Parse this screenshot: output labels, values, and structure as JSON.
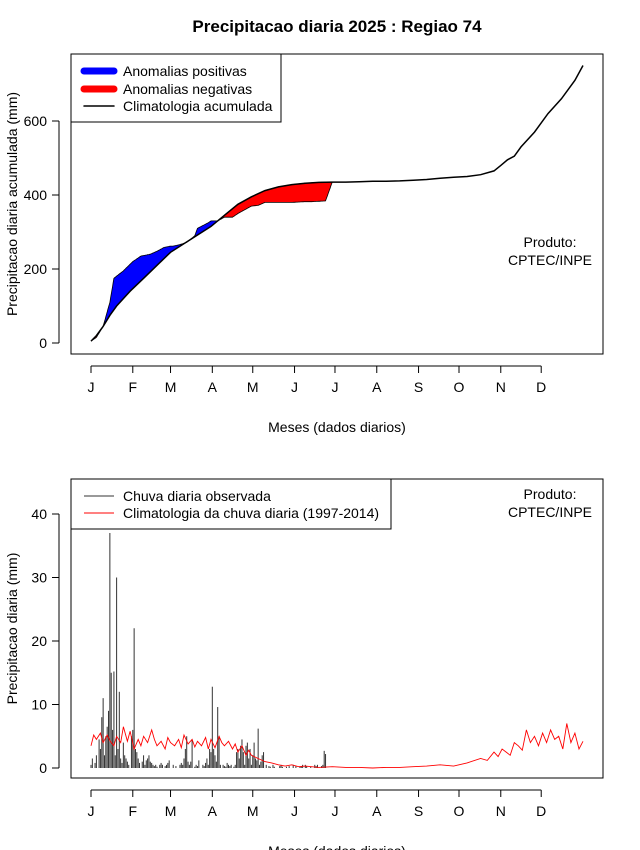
{
  "title": "Precipitacao diaria 2025 : Regiao 74",
  "months": [
    "J",
    "F",
    "M",
    "A",
    "M",
    "J",
    "J",
    "A",
    "S",
    "O",
    "N",
    "D"
  ],
  "chart_data": [
    {
      "type": "area",
      "ylabel": "Precipitacao diaria acumulada (mm)",
      "xlabel": "Meses (dados diarios)",
      "x_unit": "day_of_year",
      "ylim": [
        -30,
        760
      ],
      "yticks": [
        0,
        200,
        400,
        600
      ],
      "legend": {
        "position": "top-left",
        "entries": [
          "Anomalias positivas",
          "Anomalias negativas",
          "Climatologia acumulada"
        ],
        "colors": [
          "#0000ff",
          "#ff0000",
          "#000000"
        ]
      },
      "annotation": {
        "line1": "Produto:",
        "line2": "CPTEC/INPE",
        "position": "right"
      },
      "climatology_cumulative": {
        "name": "Climatologia acumulada",
        "x": [
          1,
          5,
          10,
          15,
          20,
          30,
          40,
          50,
          60,
          75,
          90,
          100,
          110,
          120,
          130,
          140,
          150,
          160,
          170,
          180,
          190,
          200,
          210,
          220,
          230,
          240,
          250,
          260,
          270,
          280,
          290,
          300,
          305,
          310,
          315,
          320,
          330,
          340,
          350,
          360,
          366
        ],
        "y": [
          5,
          20,
          45,
          75,
          100,
          140,
          175,
          210,
          245,
          280,
          315,
          345,
          375,
          395,
          412,
          422,
          428,
          432,
          434,
          435,
          435,
          436,
          437,
          437,
          438,
          440,
          442,
          445,
          448,
          450,
          455,
          465,
          480,
          495,
          505,
          530,
          570,
          620,
          660,
          710,
          750
        ]
      },
      "observed_cumulative": {
        "x": [
          1,
          5,
          10,
          15,
          18,
          25,
          32,
          38,
          45,
          50,
          55,
          60,
          62,
          66,
          72,
          78,
          80,
          88,
          90,
          95,
          100,
          106,
          110,
          115,
          120,
          125,
          130,
          135,
          140,
          145,
          150,
          155,
          160,
          165,
          170,
          175,
          180
        ],
        "y": [
          5,
          15,
          45,
          110,
          175,
          195,
          220,
          235,
          240,
          248,
          258,
          262,
          262,
          265,
          272,
          290,
          310,
          325,
          330,
          330,
          340,
          340,
          350,
          360,
          370,
          372,
          380,
          380,
          380,
          380,
          380,
          381,
          382,
          382,
          383,
          384,
          435
        ]
      },
      "observation_end_day": 180
    },
    {
      "type": "bar",
      "ylabel": "Precipitacao diaria (mm)",
      "xlabel": "Meses (dados diarios)",
      "x_unit": "day_of_year",
      "ylim": [
        -1.5,
        45
      ],
      "yticks": [
        0,
        10,
        20,
        30,
        40
      ],
      "legend": {
        "position": "top-left",
        "entries": [
          "Chuva diaria observada",
          "Climatologia da chuva diaria (1997-2014)"
        ],
        "colors": [
          "#333333",
          "#ff0000"
        ]
      },
      "annotation": {
        "line1": "Produto:",
        "line2": "CPTEC/INPE",
        "position": "top-right"
      },
      "observed_daily": {
        "name": "Chuva diaria observada",
        "values": [
          0.5,
          1.5,
          0,
          0.8,
          2,
          0,
          4.5,
          3,
          8,
          11,
          2,
          5,
          6.5,
          9,
          37,
          15,
          6,
          15.2,
          2,
          30,
          3,
          12,
          1.5,
          0.8,
          4,
          2,
          1.5,
          1,
          0.5,
          0,
          5,
          6,
          22,
          3,
          2.5,
          1.5,
          0.8,
          0,
          1,
          2,
          0.5,
          1.2,
          1.5,
          2,
          1,
          0.8,
          0.5,
          0.3,
          0.5,
          0.2,
          0,
          0.5,
          0.8,
          0.5,
          0,
          0.3,
          0.5,
          0.8,
          1.2,
          0,
          0,
          0.5,
          0,
          0.3,
          0,
          0,
          0.5,
          0.8,
          0.5,
          1.5,
          3,
          5,
          1,
          0.5,
          1,
          4.5,
          0,
          0.2,
          0.5,
          0.3,
          1.2,
          0,
          0,
          0.5,
          0.3,
          0.8,
          1.5,
          0.5,
          3,
          2.5,
          12.8,
          3,
          2,
          1,
          9.6,
          5,
          0.5,
          0,
          0.5,
          0.3,
          0.2,
          0.8,
          0.5,
          0.3,
          0.5,
          0,
          0.2,
          0.5,
          2.5,
          3,
          1.5,
          3.5,
          4.5,
          2.5,
          0.5,
          3.5,
          4,
          1.5,
          3,
          0.5,
          2,
          4,
          1.5,
          1.2,
          6.2,
          0.5,
          1,
          2,
          2.5,
          0,
          0.5,
          0,
          0.3,
          0.2,
          0,
          0.5,
          0.2,
          0,
          0,
          0,
          0.3,
          0.5,
          0.2,
          0,
          0,
          0.2,
          0,
          0.3,
          0,
          0,
          0.5,
          0,
          0.3,
          0,
          0,
          0.2,
          0.3,
          0.5,
          0,
          0.5,
          0.3,
          0,
          0,
          0.2,
          0,
          0,
          0.5,
          0.3,
          0.5,
          0,
          0,
          0.3,
          0.5,
          2.7,
          2.2,
          0,
          0
        ]
      },
      "climatology_daily": {
        "name": "Climatologia da chuva diaria (1997-2014)",
        "x": [
          1,
          3,
          5,
          8,
          10,
          13,
          15,
          18,
          20,
          23,
          25,
          28,
          30,
          33,
          36,
          38,
          40,
          43,
          46,
          48,
          50,
          53,
          56,
          58,
          60,
          63,
          66,
          68,
          70,
          73,
          76,
          78,
          80,
          83,
          86,
          88,
          90,
          93,
          96,
          98,
          100,
          103,
          106,
          108,
          110,
          113,
          116,
          118,
          120,
          125,
          130,
          135,
          140,
          145,
          150,
          155,
          160,
          170,
          180,
          190,
          200,
          210,
          220,
          230,
          240,
          250,
          260,
          270,
          280,
          290,
          295,
          300,
          303,
          306,
          309,
          312,
          315,
          318,
          321,
          324,
          327,
          330,
          333,
          336,
          339,
          342,
          345,
          348,
          351,
          354,
          357,
          360,
          363,
          366
        ],
        "y": [
          3.5,
          5.2,
          4.5,
          5.5,
          4,
          5.2,
          4.3,
          3.5,
          5,
          4,
          6.5,
          4.2,
          5.8,
          3,
          4.5,
          3.5,
          5,
          4,
          6,
          4.5,
          3.5,
          4.2,
          3,
          4.8,
          4,
          3.5,
          4.5,
          3.2,
          5.2,
          3.8,
          4.5,
          3.3,
          4.2,
          3.5,
          4.8,
          3,
          4.5,
          3.2,
          5,
          4,
          3.5,
          4.2,
          3,
          3.8,
          2.5,
          3.5,
          2,
          2.8,
          2,
          1.5,
          1,
          0.8,
          0.5,
          0.3,
          0.5,
          0.2,
          0.3,
          0.1,
          0.2,
          0.1,
          0.1,
          0,
          0.1,
          0.1,
          0.2,
          0.3,
          0.5,
          0.3,
          0.8,
          1.5,
          1.2,
          2.5,
          1.8,
          3,
          2.5,
          2,
          4,
          3.5,
          2.8,
          6,
          4,
          5,
          3.5,
          5.5,
          4,
          6,
          4.5,
          5,
          3,
          7,
          4,
          5.5,
          3,
          4.2
        ]
      }
    }
  ]
}
